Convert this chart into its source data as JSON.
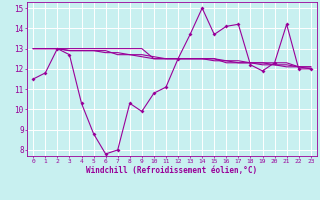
{
  "xlabel": "Windchill (Refroidissement éolien,°C)",
  "ylabel": "",
  "bg_color": "#c8f0f0",
  "line_color": "#990099",
  "grid_color": "#ffffff",
  "xlim": [
    -0.5,
    23.5
  ],
  "ylim": [
    7.7,
    15.3
  ],
  "yticks": [
    8,
    9,
    10,
    11,
    12,
    13,
    14,
    15
  ],
  "xticks": [
    0,
    1,
    2,
    3,
    4,
    5,
    6,
    7,
    8,
    9,
    10,
    11,
    12,
    13,
    14,
    15,
    16,
    17,
    18,
    19,
    20,
    21,
    22,
    23
  ],
  "line1": [
    11.5,
    11.8,
    13.0,
    12.7,
    10.3,
    8.8,
    7.8,
    8.0,
    10.3,
    9.9,
    10.8,
    11.1,
    12.5,
    13.7,
    15.0,
    13.7,
    14.1,
    14.2,
    12.2,
    11.9,
    12.3,
    14.2,
    12.0,
    12.0
  ],
  "line2": [
    13.0,
    13.0,
    13.0,
    13.0,
    13.0,
    13.0,
    13.0,
    13.0,
    13.0,
    13.0,
    12.5,
    12.5,
    12.5,
    12.5,
    12.5,
    12.5,
    12.3,
    12.3,
    12.3,
    12.3,
    12.3,
    12.3,
    12.1,
    12.1
  ],
  "line3": [
    13.0,
    13.0,
    13.0,
    12.9,
    12.9,
    12.9,
    12.9,
    12.7,
    12.7,
    12.7,
    12.6,
    12.5,
    12.5,
    12.5,
    12.5,
    12.5,
    12.4,
    12.4,
    12.3,
    12.3,
    12.2,
    12.2,
    12.1,
    12.1
  ],
  "line4": [
    13.0,
    13.0,
    13.0,
    12.9,
    12.9,
    12.9,
    12.8,
    12.8,
    12.7,
    12.6,
    12.5,
    12.5,
    12.5,
    12.5,
    12.5,
    12.4,
    12.4,
    12.3,
    12.3,
    12.2,
    12.2,
    12.1,
    12.1,
    12.0
  ]
}
